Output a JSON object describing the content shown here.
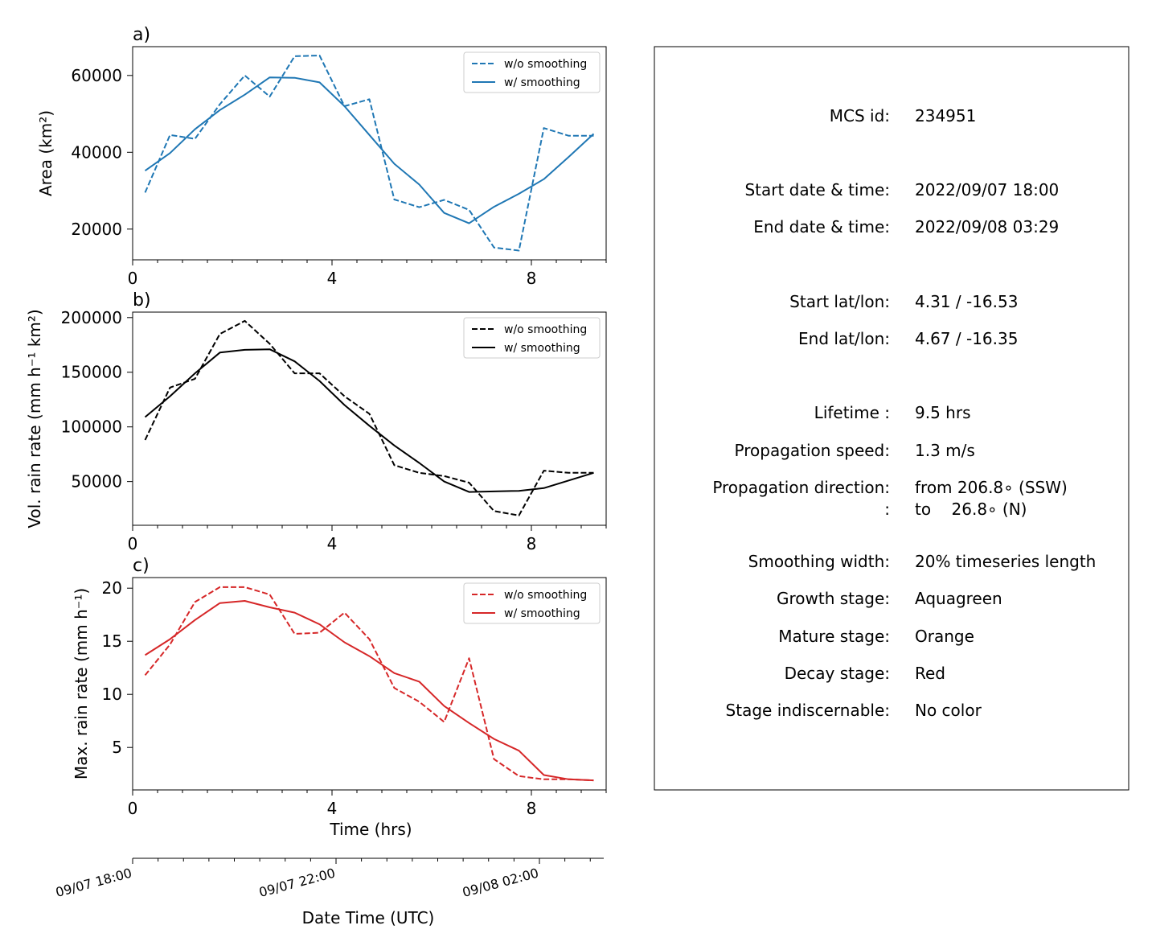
{
  "chart_data": [
    {
      "type": "line",
      "panel_label": "a)",
      "xlabel": "",
      "ylabel": "Area  (km²)",
      "xlim": [
        0,
        9.5
      ],
      "ylim": [
        12000,
        67500
      ],
      "xticks": [
        0,
        4,
        8
      ],
      "xtick_labels": [
        "0",
        "4",
        "8"
      ],
      "yticks": [
        20000,
        40000,
        60000
      ],
      "ytick_labels": [
        "20000",
        "40000",
        "60000"
      ],
      "legend_position": "top-right",
      "color": "#1f77b4",
      "x": [
        0.25,
        0.75,
        1.25,
        1.75,
        2.25,
        2.75,
        3.25,
        3.75,
        4.25,
        4.75,
        5.25,
        5.75,
        6.25,
        6.75,
        7.25,
        7.75,
        8.25,
        8.75,
        9.25
      ],
      "series": [
        {
          "name": "w/o smoothing",
          "style": "dashed",
          "values": [
            29500,
            44500,
            43500,
            52500,
            60000,
            54500,
            65000,
            65200,
            52000,
            53800,
            27700,
            25700,
            27600,
            25000,
            15200,
            14400,
            46300,
            44300,
            44300
          ]
        },
        {
          "name": "w/ smoothing",
          "style": "solid",
          "values": [
            35200,
            39800,
            46000,
            51000,
            55000,
            59500,
            59400,
            58200,
            52000,
            44500,
            37000,
            31600,
            24200,
            21500,
            25800,
            29200,
            33000,
            38800,
            44800
          ]
        }
      ]
    },
    {
      "type": "line",
      "panel_label": "b)",
      "xlabel": "",
      "ylabel": "Vol. rain rate (mm h⁻¹ km²)",
      "xlim": [
        0,
        9.5
      ],
      "ylim": [
        10000,
        205000
      ],
      "xticks": [
        0,
        4,
        8
      ],
      "xtick_labels": [
        "0",
        "4",
        "8"
      ],
      "yticks": [
        50000,
        100000,
        150000,
        200000
      ],
      "ytick_labels": [
        "50000",
        "100000",
        "150000",
        "200000"
      ],
      "legend_position": "top-right",
      "color": "#000000",
      "x": [
        0.25,
        0.75,
        1.25,
        1.75,
        2.25,
        2.75,
        3.25,
        3.75,
        4.25,
        4.75,
        5.25,
        5.75,
        6.25,
        6.75,
        7.25,
        7.75,
        8.25,
        8.75,
        9.25
      ],
      "series": [
        {
          "name": "w/o smoothing",
          "style": "dashed",
          "values": [
            88000,
            136000,
            144000,
            185000,
            197000,
            176000,
            149000,
            149000,
            128000,
            112000,
            65000,
            58000,
            55000,
            49000,
            23000,
            19000,
            60000,
            58000,
            58000
          ]
        },
        {
          "name": "w/ smoothing",
          "style": "solid",
          "values": [
            109000,
            128000,
            149000,
            168000,
            170500,
            171000,
            160000,
            142000,
            120000,
            101000,
            83000,
            67000,
            50000,
            40500,
            41000,
            41500,
            44000,
            51000,
            58000
          ]
        }
      ]
    },
    {
      "type": "line",
      "panel_label": "c)",
      "xlabel": "Time (hrs)",
      "ylabel": "Max. rain rate  (mm h⁻¹)",
      "xlim": [
        0,
        9.5
      ],
      "ylim": [
        1,
        21
      ],
      "xticks": [
        0,
        4,
        8
      ],
      "xtick_labels": [
        "0",
        "4",
        "8"
      ],
      "yticks": [
        5,
        10,
        15,
        20
      ],
      "ytick_labels": [
        "5",
        "10",
        "15",
        "20"
      ],
      "legend_position": "top-right",
      "color": "#d62728",
      "x": [
        0.25,
        0.75,
        1.25,
        1.75,
        2.25,
        2.75,
        3.25,
        3.75,
        4.25,
        4.75,
        5.25,
        5.75,
        6.25,
        6.75,
        7.25,
        7.75,
        8.25,
        8.75,
        9.25
      ],
      "series": [
        {
          "name": "w/o smoothing",
          "style": "dashed",
          "values": [
            11.8,
            14.7,
            18.7,
            20.1,
            20.1,
            19.4,
            15.7,
            15.8,
            17.7,
            15.2,
            10.6,
            9.3,
            7.4,
            13.4,
            3.9,
            2.3,
            2.0,
            2.0,
            1.9
          ]
        },
        {
          "name": "w/ smoothing",
          "style": "solid",
          "values": [
            13.7,
            15.2,
            17.0,
            18.6,
            18.8,
            18.2,
            17.7,
            16.6,
            14.9,
            13.6,
            12.0,
            11.2,
            8.9,
            7.3,
            5.8,
            4.7,
            2.4,
            2.0,
            1.9
          ]
        }
      ]
    }
  ],
  "datetime_axis": {
    "label": "Date Time (UTC)",
    "tick_labels": [
      "09/07 18:00",
      "09/07 22:00",
      "09/08 02:00"
    ],
    "tick_hours": [
      0,
      4,
      8
    ]
  },
  "info_panel": {
    "rows": [
      {
        "label": "MCS id:",
        "value": "234951"
      },
      {
        "label": "Start date & time:",
        "value": "2022/09/07 18:00"
      },
      {
        "label": "End date & time:",
        "value": "2022/09/08 03:29"
      },
      {
        "label": "Start lat/lon:",
        "value": "4.31 / -16.53"
      },
      {
        "label": "End lat/lon:",
        "value": "4.67 / -16.35"
      },
      {
        "label": "Lifetime :",
        "value": "9.5 hrs"
      },
      {
        "label": "Propagation speed:",
        "value": "1.3 m/s"
      },
      {
        "label": "Propagation direction:",
        "value": "from 206.8∘ (SSW)"
      },
      {
        "label": ":",
        "value": "to    26.8∘ (N)"
      },
      {
        "label": "Smoothing width:",
        "value": "20% timeseries length"
      },
      {
        "label": "Growth stage:",
        "value": "Aquagreen"
      },
      {
        "label": "Mature stage:",
        "value": "Orange"
      },
      {
        "label": "Decay stage:",
        "value": "Red"
      },
      {
        "label": "Stage indiscernable:",
        "value": "No color"
      }
    ]
  }
}
